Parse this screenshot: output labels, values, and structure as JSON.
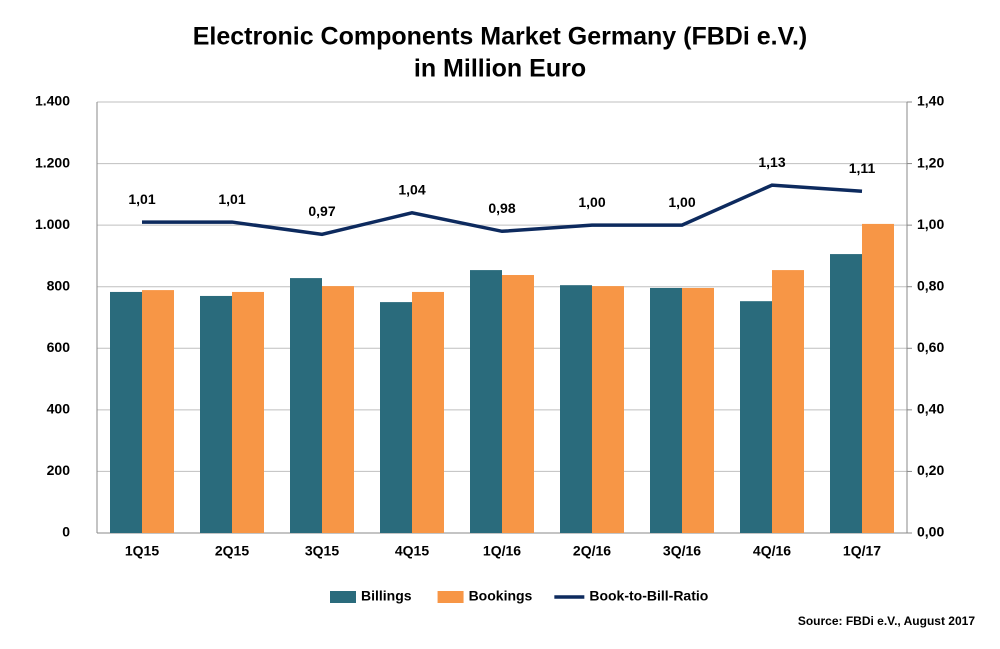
{
  "chart_data": {
    "type": "bar_line",
    "title": "Electronic Components Market Germany (FBDi e.V.)",
    "subtitle": "in Million Euro",
    "categories": [
      "1Q15",
      "2Q15",
      "3Q15",
      "4Q15",
      "1Q/16",
      "2Q/16",
      "3Q/16",
      "4Q/16",
      "1Q/17"
    ],
    "series": [
      {
        "name": "Billings",
        "type": "bar",
        "color": "#2a6b7c",
        "values": [
          783,
          770,
          828,
          750,
          854,
          805,
          796,
          753,
          906
        ]
      },
      {
        "name": "Bookings",
        "type": "bar",
        "color": "#f79646",
        "values": [
          789,
          783,
          802,
          783,
          838,
          802,
          796,
          854,
          1004
        ]
      },
      {
        "name": "Book-to-Bill-Ratio",
        "type": "line",
        "axis": "y2",
        "color": "#0d2a5e",
        "values": [
          1.01,
          1.01,
          0.97,
          1.04,
          0.98,
          1.0,
          1.0,
          1.13,
          1.11
        ],
        "value_labels": [
          "1,01",
          "1,01",
          "0,97",
          "1,04",
          "0,98",
          "1,00",
          "1,00",
          "1,13",
          "1,11"
        ]
      }
    ],
    "ylim": [
      0,
      1400
    ],
    "yticks": [
      0,
      200,
      400,
      600,
      800,
      {
        "value": 1000,
        "label": "1.000"
      },
      {
        "value": 1200,
        "label": "1.200"
      },
      {
        "value": 1400,
        "label": "1.400"
      }
    ],
    "y2lim": [
      0,
      1.4
    ],
    "y2ticks": [
      {
        "value": 0,
        "label": "0,00"
      },
      {
        "value": 0.2,
        "label": "0,20"
      },
      {
        "value": 0.4,
        "label": "0,40"
      },
      {
        "value": 0.6,
        "label": "0,60"
      },
      {
        "value": 0.8,
        "label": "0,80"
      },
      {
        "value": 1.0,
        "label": "1,00"
      },
      {
        "value": 1.2,
        "label": "1,20"
      },
      {
        "value": 1.4,
        "label": "1,40"
      }
    ],
    "grid": true,
    "legend": "bottom",
    "source": "Source: FBDi e.V., August 2017"
  }
}
